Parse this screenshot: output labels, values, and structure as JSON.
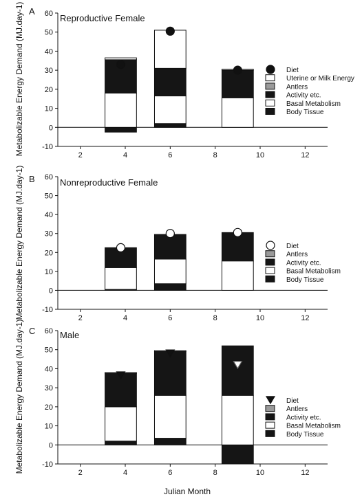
{
  "figure": {
    "xlabel": "Julian Month"
  },
  "legend_colors": {
    "white": "#ffffff",
    "black": "#151515",
    "gray": "#9a9a9a"
  },
  "chart_data": [
    {
      "type": "bar",
      "panel_letter": "A",
      "title": "Reproductive Female",
      "ylabel": "Metabolizable Energy Demand (MJ.day-1)",
      "ylim": [
        -10,
        60
      ],
      "yticks": [
        -10,
        0,
        10,
        20,
        30,
        40,
        50,
        60
      ],
      "xlim": [
        1,
        13
      ],
      "xticks": [
        2,
        4,
        6,
        8,
        10,
        12
      ],
      "legend_position": "right",
      "legend": [
        {
          "label": "Diet",
          "marker": "filled-circle"
        },
        {
          "label": "Uterine or Milk Energy",
          "fill": "white"
        },
        {
          "label": "Antlers",
          "fill": "gray"
        },
        {
          "label": "Activity etc.",
          "fill": "black"
        },
        {
          "label": "Basal Metabolism",
          "fill": "white"
        },
        {
          "label": "Body Tissue",
          "fill": "black"
        }
      ],
      "x": [
        3.8,
        6.0,
        9.0
      ],
      "series": [
        {
          "name": "Body Tissue",
          "fill": "black",
          "values": [
            -2.5,
            2,
            0
          ]
        },
        {
          "name": "Basal Metabolism",
          "fill": "white",
          "values": [
            18,
            14.5,
            15.5
          ]
        },
        {
          "name": "Activity etc.",
          "fill": "black",
          "values": [
            17.5,
            14.5,
            14.5
          ]
        },
        {
          "name": "Antlers",
          "fill": "gray",
          "values": [
            0,
            0,
            0
          ]
        },
        {
          "name": "Uterine or Milk Energy",
          "fill": "white",
          "values": [
            1.0,
            20,
            0.5
          ]
        }
      ],
      "diet": {
        "marker": "filled-circle",
        "x": [
          3.8,
          6.0,
          9.0
        ],
        "values": [
          33,
          50.5,
          30
        ]
      }
    },
    {
      "type": "bar",
      "panel_letter": "B",
      "title": "Nonreproductive Female",
      "ylabel": "Metabolizable Energy Demand (MJ.day-1)",
      "ylim": [
        -10,
        60
      ],
      "yticks": [
        -10,
        0,
        10,
        20,
        30,
        40,
        50,
        60
      ],
      "xlim": [
        1,
        13
      ],
      "xticks": [
        2,
        4,
        6,
        8,
        10,
        12
      ],
      "legend_position": "right",
      "legend": [
        {
          "label": "Diet",
          "marker": "open-circle"
        },
        {
          "label": "Antlers",
          "fill": "gray"
        },
        {
          "label": "Activity etc.",
          "fill": "black"
        },
        {
          "label": "Basal Metabolism",
          "fill": "white"
        },
        {
          "label": "Body Tissue",
          "fill": "black"
        }
      ],
      "x": [
        3.8,
        6.0,
        9.0
      ],
      "series": [
        {
          "name": "Body Tissue",
          "fill": "black",
          "values": [
            0.5,
            3.5,
            0
          ]
        },
        {
          "name": "Basal Metabolism",
          "fill": "white",
          "values": [
            11.5,
            13,
            15.5
          ]
        },
        {
          "name": "Activity etc.",
          "fill": "black",
          "values": [
            10.5,
            13,
            15
          ]
        },
        {
          "name": "Antlers",
          "fill": "gray",
          "values": [
            0,
            0,
            0
          ]
        }
      ],
      "diet": {
        "marker": "open-circle",
        "x": [
          3.8,
          6.0,
          9.0
        ],
        "values": [
          22.5,
          30,
          30.5
        ]
      }
    },
    {
      "type": "bar",
      "panel_letter": "C",
      "title": "Male",
      "ylabel": "Metabolizable Energy Demand (MJ.day-1)",
      "ylim": [
        -10,
        60
      ],
      "yticks": [
        -10,
        0,
        10,
        20,
        30,
        40,
        50,
        60
      ],
      "xlim": [
        1,
        13
      ],
      "xticks": [
        2,
        4,
        6,
        8,
        10,
        12
      ],
      "legend_position": "right",
      "legend": [
        {
          "label": "Diet",
          "marker": "filled-triangle"
        },
        {
          "label": "Antlers",
          "fill": "gray"
        },
        {
          "label": "Activity etc.",
          "fill": "black"
        },
        {
          "label": "Basal Metabolism",
          "fill": "white"
        },
        {
          "label": "Body Tissue",
          "fill": "black"
        }
      ],
      "x": [
        3.8,
        6.0,
        9.0
      ],
      "series": [
        {
          "name": "Body Tissue",
          "fill": "black",
          "values": [
            2,
            3.5,
            -10
          ]
        },
        {
          "name": "Basal Metabolism",
          "fill": "white",
          "values": [
            18,
            22.5,
            26
          ]
        },
        {
          "name": "Activity etc.",
          "fill": "black",
          "values": [
            17.5,
            23,
            26
          ]
        },
        {
          "name": "Antlers",
          "fill": "gray",
          "values": [
            0.5,
            0.5,
            0
          ]
        }
      ],
      "diet": {
        "marker": "filled-triangle",
        "x": [
          3.8,
          6.0,
          9.0
        ],
        "values": [
          36.5,
          48,
          42
        ],
        "open_indices": [
          2
        ]
      }
    }
  ]
}
